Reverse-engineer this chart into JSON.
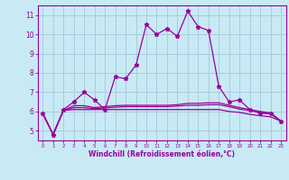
{
  "xlabel": "Windchill (Refroidissement éolien,°C)",
  "x": [
    0,
    1,
    2,
    3,
    4,
    5,
    6,
    7,
    8,
    9,
    10,
    11,
    12,
    13,
    14,
    15,
    16,
    17,
    18,
    19,
    20,
    21,
    22,
    23
  ],
  "line1": [
    5.9,
    4.8,
    6.1,
    6.5,
    7.0,
    6.6,
    6.1,
    7.8,
    7.7,
    8.4,
    10.5,
    10.0,
    10.3,
    9.9,
    11.2,
    10.4,
    10.2,
    7.3,
    6.5,
    6.6,
    6.1,
    5.9,
    5.9,
    5.5
  ],
  "line2": [
    5.9,
    4.8,
    6.05,
    6.1,
    6.1,
    6.1,
    6.1,
    6.1,
    6.1,
    6.1,
    6.1,
    6.1,
    6.1,
    6.1,
    6.1,
    6.1,
    6.1,
    6.1,
    6.0,
    5.95,
    5.85,
    5.78,
    5.72,
    5.5
  ],
  "line3": [
    5.9,
    4.8,
    6.05,
    6.2,
    6.2,
    6.15,
    6.18,
    6.22,
    6.25,
    6.25,
    6.25,
    6.25,
    6.25,
    6.28,
    6.32,
    6.32,
    6.35,
    6.35,
    6.25,
    6.12,
    6.05,
    5.95,
    5.88,
    5.5
  ],
  "line4": [
    5.9,
    4.8,
    6.05,
    6.3,
    6.3,
    6.2,
    6.25,
    6.3,
    6.32,
    6.32,
    6.32,
    6.32,
    6.32,
    6.35,
    6.42,
    6.42,
    6.45,
    6.45,
    6.32,
    6.2,
    6.1,
    6.0,
    5.93,
    5.5
  ],
  "line_color": "#990099",
  "bg_color": "#c8eaf4",
  "grid_color": "#aaccdd",
  "ylim": [
    4.5,
    11.5
  ],
  "xlim": [
    -0.5,
    23.5
  ],
  "yticks": [
    5,
    6,
    7,
    8,
    9,
    10,
    11
  ],
  "xticks": [
    0,
    1,
    2,
    3,
    4,
    5,
    6,
    7,
    8,
    9,
    10,
    11,
    12,
    13,
    14,
    15,
    16,
    17,
    18,
    19,
    20,
    21,
    22,
    23
  ]
}
